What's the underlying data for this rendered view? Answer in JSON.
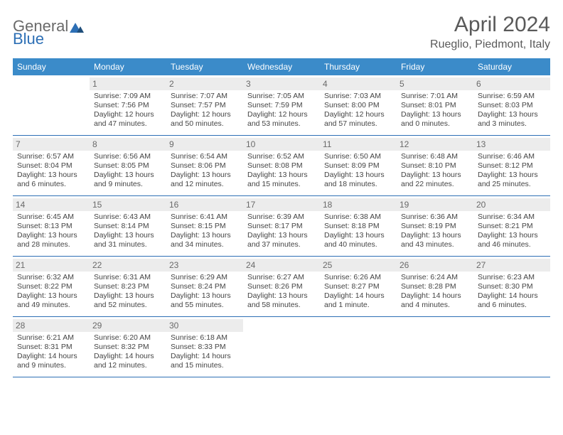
{
  "logo": {
    "part1": "General",
    "part2": "Blue"
  },
  "title": "April 2024",
  "subtitle": "Rueglio, Piedmont, Italy",
  "colors": {
    "header_bg": "#3b8bc9",
    "header_text": "#ffffff",
    "border": "#2d6fb5",
    "daynum_bg": "#ececec",
    "text": "#444444",
    "logo_gray": "#6a6a6a",
    "logo_blue": "#2d6fb5"
  },
  "weekdays": [
    "Sunday",
    "Monday",
    "Tuesday",
    "Wednesday",
    "Thursday",
    "Friday",
    "Saturday"
  ],
  "weeks": [
    [
      {
        "n": "",
        "sr": "",
        "ss": "",
        "d1": "",
        "d2": ""
      },
      {
        "n": "1",
        "sr": "Sunrise: 7:09 AM",
        "ss": "Sunset: 7:56 PM",
        "d1": "Daylight: 12 hours",
        "d2": "and 47 minutes."
      },
      {
        "n": "2",
        "sr": "Sunrise: 7:07 AM",
        "ss": "Sunset: 7:57 PM",
        "d1": "Daylight: 12 hours",
        "d2": "and 50 minutes."
      },
      {
        "n": "3",
        "sr": "Sunrise: 7:05 AM",
        "ss": "Sunset: 7:59 PM",
        "d1": "Daylight: 12 hours",
        "d2": "and 53 minutes."
      },
      {
        "n": "4",
        "sr": "Sunrise: 7:03 AM",
        "ss": "Sunset: 8:00 PM",
        "d1": "Daylight: 12 hours",
        "d2": "and 57 minutes."
      },
      {
        "n": "5",
        "sr": "Sunrise: 7:01 AM",
        "ss": "Sunset: 8:01 PM",
        "d1": "Daylight: 13 hours",
        "d2": "and 0 minutes."
      },
      {
        "n": "6",
        "sr": "Sunrise: 6:59 AM",
        "ss": "Sunset: 8:03 PM",
        "d1": "Daylight: 13 hours",
        "d2": "and 3 minutes."
      }
    ],
    [
      {
        "n": "7",
        "sr": "Sunrise: 6:57 AM",
        "ss": "Sunset: 8:04 PM",
        "d1": "Daylight: 13 hours",
        "d2": "and 6 minutes."
      },
      {
        "n": "8",
        "sr": "Sunrise: 6:56 AM",
        "ss": "Sunset: 8:05 PM",
        "d1": "Daylight: 13 hours",
        "d2": "and 9 minutes."
      },
      {
        "n": "9",
        "sr": "Sunrise: 6:54 AM",
        "ss": "Sunset: 8:06 PM",
        "d1": "Daylight: 13 hours",
        "d2": "and 12 minutes."
      },
      {
        "n": "10",
        "sr": "Sunrise: 6:52 AM",
        "ss": "Sunset: 8:08 PM",
        "d1": "Daylight: 13 hours",
        "d2": "and 15 minutes."
      },
      {
        "n": "11",
        "sr": "Sunrise: 6:50 AM",
        "ss": "Sunset: 8:09 PM",
        "d1": "Daylight: 13 hours",
        "d2": "and 18 minutes."
      },
      {
        "n": "12",
        "sr": "Sunrise: 6:48 AM",
        "ss": "Sunset: 8:10 PM",
        "d1": "Daylight: 13 hours",
        "d2": "and 22 minutes."
      },
      {
        "n": "13",
        "sr": "Sunrise: 6:46 AM",
        "ss": "Sunset: 8:12 PM",
        "d1": "Daylight: 13 hours",
        "d2": "and 25 minutes."
      }
    ],
    [
      {
        "n": "14",
        "sr": "Sunrise: 6:45 AM",
        "ss": "Sunset: 8:13 PM",
        "d1": "Daylight: 13 hours",
        "d2": "and 28 minutes."
      },
      {
        "n": "15",
        "sr": "Sunrise: 6:43 AM",
        "ss": "Sunset: 8:14 PM",
        "d1": "Daylight: 13 hours",
        "d2": "and 31 minutes."
      },
      {
        "n": "16",
        "sr": "Sunrise: 6:41 AM",
        "ss": "Sunset: 8:15 PM",
        "d1": "Daylight: 13 hours",
        "d2": "and 34 minutes."
      },
      {
        "n": "17",
        "sr": "Sunrise: 6:39 AM",
        "ss": "Sunset: 8:17 PM",
        "d1": "Daylight: 13 hours",
        "d2": "and 37 minutes."
      },
      {
        "n": "18",
        "sr": "Sunrise: 6:38 AM",
        "ss": "Sunset: 8:18 PM",
        "d1": "Daylight: 13 hours",
        "d2": "and 40 minutes."
      },
      {
        "n": "19",
        "sr": "Sunrise: 6:36 AM",
        "ss": "Sunset: 8:19 PM",
        "d1": "Daylight: 13 hours",
        "d2": "and 43 minutes."
      },
      {
        "n": "20",
        "sr": "Sunrise: 6:34 AM",
        "ss": "Sunset: 8:21 PM",
        "d1": "Daylight: 13 hours",
        "d2": "and 46 minutes."
      }
    ],
    [
      {
        "n": "21",
        "sr": "Sunrise: 6:32 AM",
        "ss": "Sunset: 8:22 PM",
        "d1": "Daylight: 13 hours",
        "d2": "and 49 minutes."
      },
      {
        "n": "22",
        "sr": "Sunrise: 6:31 AM",
        "ss": "Sunset: 8:23 PM",
        "d1": "Daylight: 13 hours",
        "d2": "and 52 minutes."
      },
      {
        "n": "23",
        "sr": "Sunrise: 6:29 AM",
        "ss": "Sunset: 8:24 PM",
        "d1": "Daylight: 13 hours",
        "d2": "and 55 minutes."
      },
      {
        "n": "24",
        "sr": "Sunrise: 6:27 AM",
        "ss": "Sunset: 8:26 PM",
        "d1": "Daylight: 13 hours",
        "d2": "and 58 minutes."
      },
      {
        "n": "25",
        "sr": "Sunrise: 6:26 AM",
        "ss": "Sunset: 8:27 PM",
        "d1": "Daylight: 14 hours",
        "d2": "and 1 minute."
      },
      {
        "n": "26",
        "sr": "Sunrise: 6:24 AM",
        "ss": "Sunset: 8:28 PM",
        "d1": "Daylight: 14 hours",
        "d2": "and 4 minutes."
      },
      {
        "n": "27",
        "sr": "Sunrise: 6:23 AM",
        "ss": "Sunset: 8:30 PM",
        "d1": "Daylight: 14 hours",
        "d2": "and 6 minutes."
      }
    ],
    [
      {
        "n": "28",
        "sr": "Sunrise: 6:21 AM",
        "ss": "Sunset: 8:31 PM",
        "d1": "Daylight: 14 hours",
        "d2": "and 9 minutes."
      },
      {
        "n": "29",
        "sr": "Sunrise: 6:20 AM",
        "ss": "Sunset: 8:32 PM",
        "d1": "Daylight: 14 hours",
        "d2": "and 12 minutes."
      },
      {
        "n": "30",
        "sr": "Sunrise: 6:18 AM",
        "ss": "Sunset: 8:33 PM",
        "d1": "Daylight: 14 hours",
        "d2": "and 15 minutes."
      },
      {
        "n": "",
        "sr": "",
        "ss": "",
        "d1": "",
        "d2": ""
      },
      {
        "n": "",
        "sr": "",
        "ss": "",
        "d1": "",
        "d2": ""
      },
      {
        "n": "",
        "sr": "",
        "ss": "",
        "d1": "",
        "d2": ""
      },
      {
        "n": "",
        "sr": "",
        "ss": "",
        "d1": "",
        "d2": ""
      }
    ]
  ]
}
